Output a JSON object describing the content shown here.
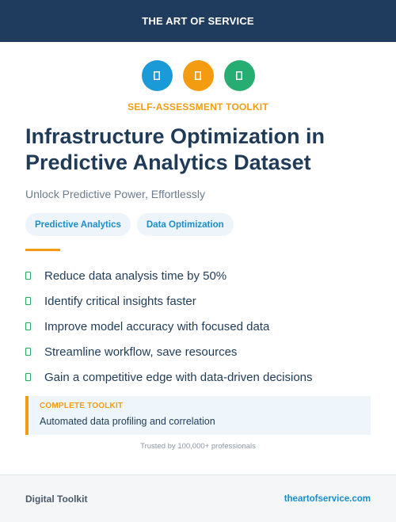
{
  "header": {
    "brand": "THE ART OF SERVICE"
  },
  "icons": [
    {
      "name": "doc-icon",
      "color": "#1a9ad6"
    },
    {
      "name": "doc-icon",
      "color": "#f39c12"
    },
    {
      "name": "doc-icon",
      "color": "#26ae72"
    }
  ],
  "kicker": "SELF-ASSESSMENT TOOLKIT",
  "title": "Infrastructure Optimization in Predictive Analytics Dataset",
  "subtitle": "Unlock Predictive Power, Effortlessly",
  "tags": [
    "Predictive Analytics",
    "Data Optimization"
  ],
  "features": [
    "Reduce data analysis time by 50%",
    "Identify critical insights faster",
    "Improve model accuracy with focused data",
    "Streamline workflow, save resources",
    "Gain a competitive edge with data-driven decisions"
  ],
  "toolkit_box": {
    "label": "COMPLETE TOOLKIT",
    "text": "Automated data profiling and correlation"
  },
  "trust": "Trusted by 100,000+ professionals",
  "footer": {
    "left": "Digital Toolkit",
    "right": "theartofservice.com"
  }
}
